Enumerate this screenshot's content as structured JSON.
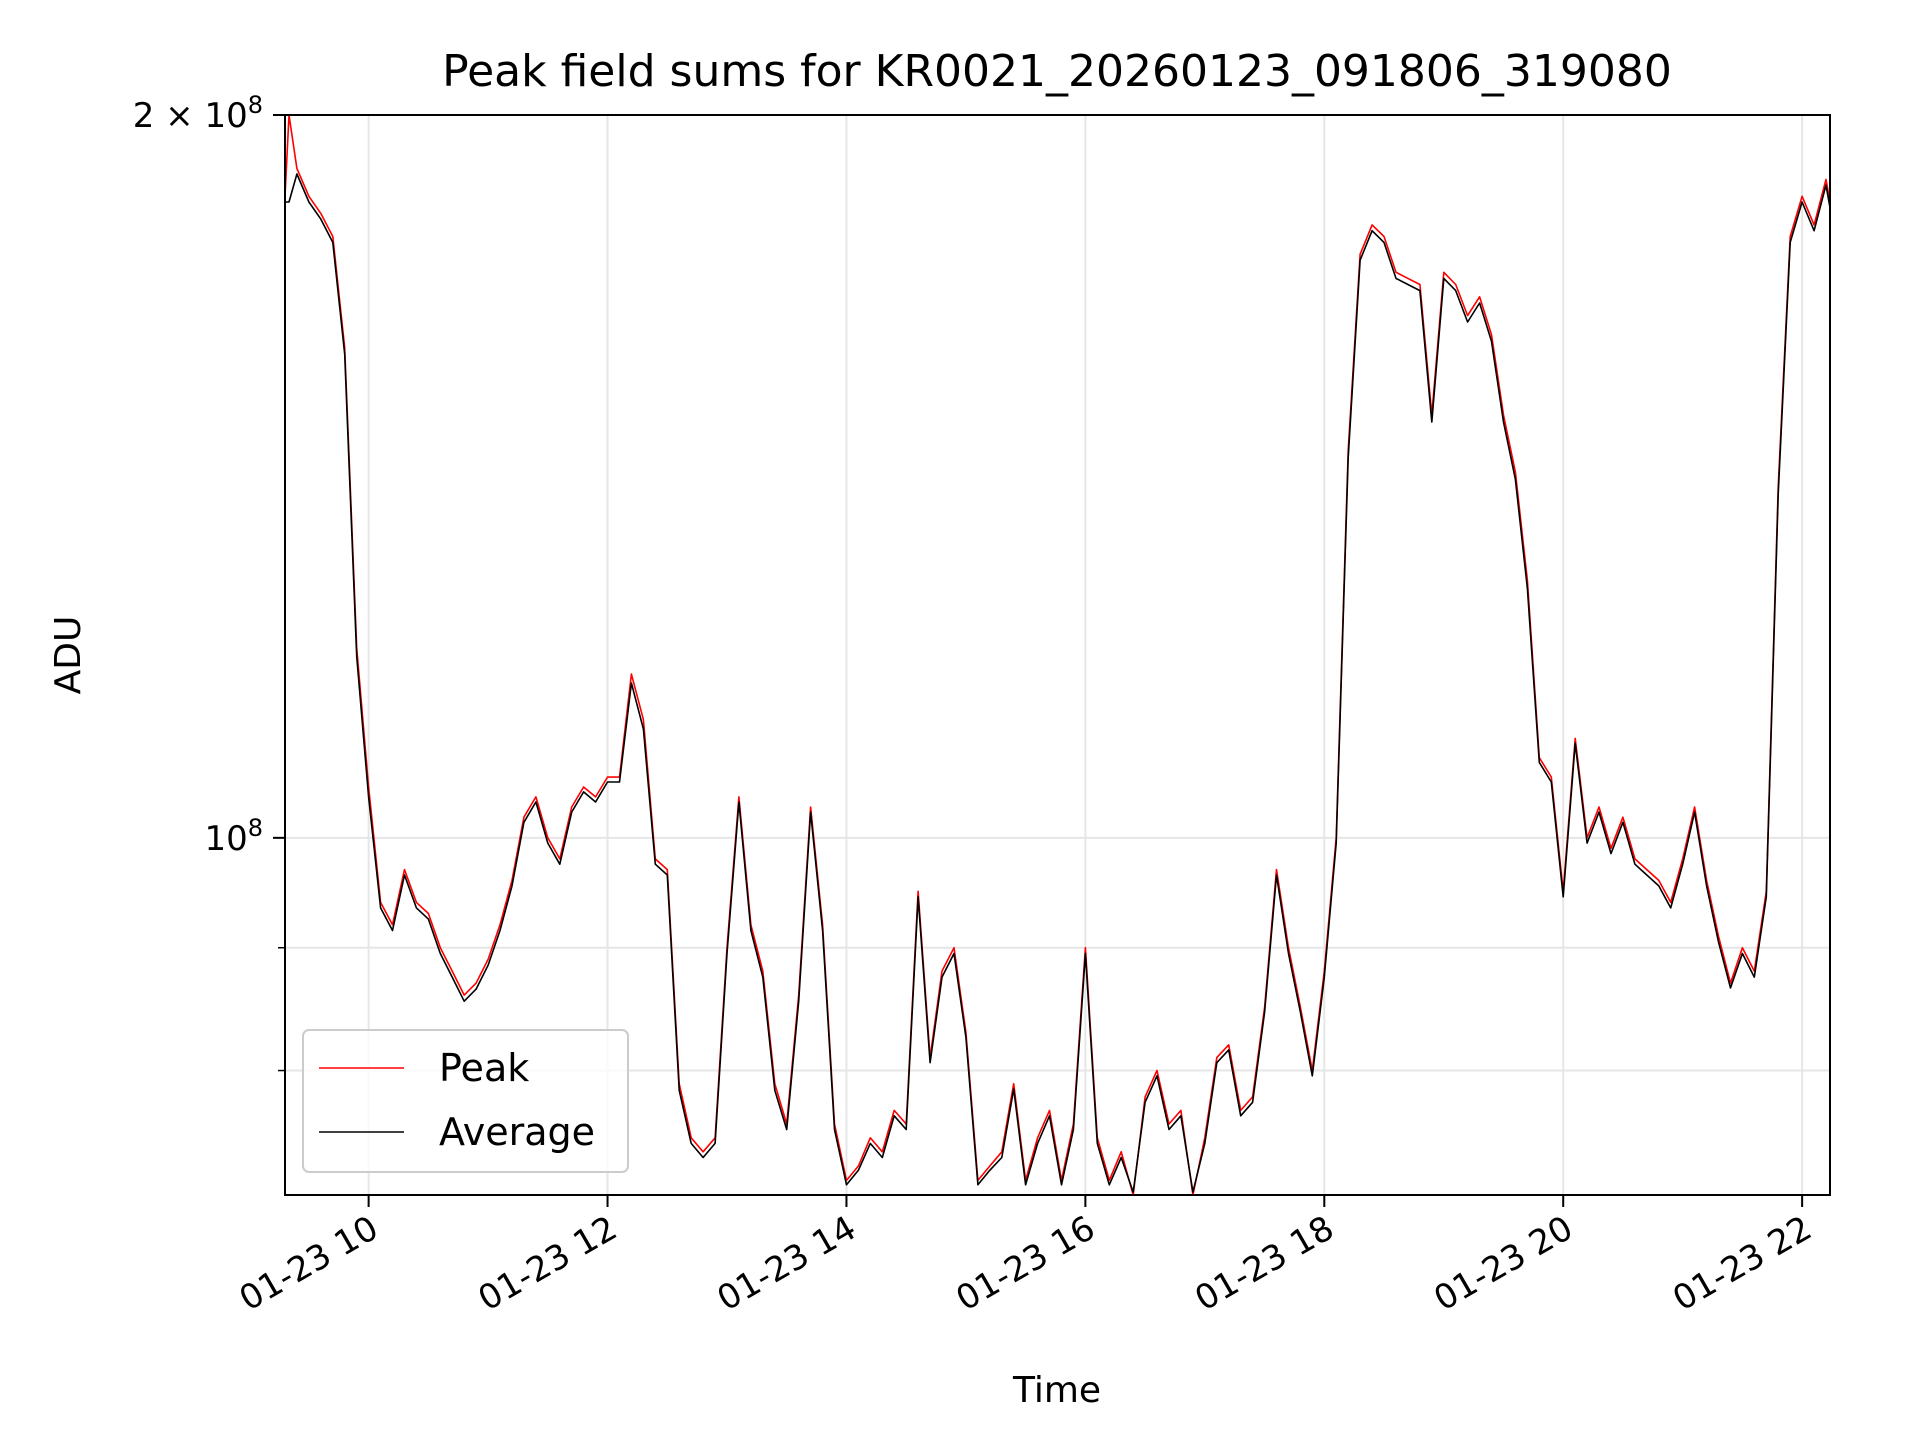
{
  "chart_data": {
    "type": "line",
    "title": "Peak field sums for KR0021_20260123_091806_319080",
    "xlabel": "Time",
    "ylabel": "ADU",
    "x_scale": "time",
    "y_scale": "log",
    "xlim": [
      "2026-01-23 09:18",
      "2026-01-23 22:14"
    ],
    "ylim": [
      71000000,
      200000000
    ],
    "grid": true,
    "legend_position": "lower-left",
    "x_ticks": [
      {
        "value": "2026-01-23 10:00",
        "label": "01-23 10"
      },
      {
        "value": "2026-01-23 12:00",
        "label": "01-23 12"
      },
      {
        "value": "2026-01-23 14:00",
        "label": "01-23 14"
      },
      {
        "value": "2026-01-23 16:00",
        "label": "01-23 16"
      },
      {
        "value": "2026-01-23 18:00",
        "label": "01-23 18"
      },
      {
        "value": "2026-01-23 20:00",
        "label": "01-23 20"
      },
      {
        "value": "2026-01-23 22:00",
        "label": "01-23 22"
      }
    ],
    "y_major_ticks": [
      {
        "value": 100000000,
        "base": "10",
        "exp": "8"
      },
      {
        "value": 200000000,
        "base": "2 × 10",
        "exp": "8"
      }
    ],
    "y_minor_ticks": [
      80000000,
      90000000
    ],
    "series": [
      {
        "name": "Peak",
        "color": "#ff0000",
        "x": [
          "2026-01-23 09:18",
          "2026-01-23 09:20",
          "2026-01-23 09:24",
          "2026-01-23 09:30",
          "2026-01-23 09:36",
          "2026-01-23 09:42",
          "2026-01-23 09:48",
          "2026-01-23 09:54",
          "2026-01-23 10:00",
          "2026-01-23 10:06",
          "2026-01-23 10:12",
          "2026-01-23 10:18",
          "2026-01-23 10:24",
          "2026-01-23 10:30",
          "2026-01-23 10:36",
          "2026-01-23 10:42",
          "2026-01-23 10:48",
          "2026-01-23 10:54",
          "2026-01-23 11:00",
          "2026-01-23 11:06",
          "2026-01-23 11:12",
          "2026-01-23 11:18",
          "2026-01-23 11:24",
          "2026-01-23 11:30",
          "2026-01-23 11:36",
          "2026-01-23 11:42",
          "2026-01-23 11:48",
          "2026-01-23 11:54",
          "2026-01-23 12:00",
          "2026-01-23 12:06",
          "2026-01-23 12:12",
          "2026-01-23 12:18",
          "2026-01-23 12:24",
          "2026-01-23 12:30",
          "2026-01-23 12:36",
          "2026-01-23 12:42",
          "2026-01-23 12:48",
          "2026-01-23 12:54",
          "2026-01-23 13:00",
          "2026-01-23 13:06",
          "2026-01-23 13:12",
          "2026-01-23 13:18",
          "2026-01-23 13:24",
          "2026-01-23 13:30",
          "2026-01-23 13:36",
          "2026-01-23 13:42",
          "2026-01-23 13:48",
          "2026-01-23 13:54",
          "2026-01-23 14:00",
          "2026-01-23 14:06",
          "2026-01-23 14:12",
          "2026-01-23 14:18",
          "2026-01-23 14:24",
          "2026-01-23 14:30",
          "2026-01-23 14:36",
          "2026-01-23 14:42",
          "2026-01-23 14:48",
          "2026-01-23 14:54",
          "2026-01-23 15:00",
          "2026-01-23 15:06",
          "2026-01-23 15:12",
          "2026-01-23 15:18",
          "2026-01-23 15:24",
          "2026-01-23 15:30",
          "2026-01-23 15:36",
          "2026-01-23 15:42",
          "2026-01-23 15:48",
          "2026-01-23 15:54",
          "2026-01-23 16:00",
          "2026-01-23 16:06",
          "2026-01-23 16:12",
          "2026-01-23 16:18",
          "2026-01-23 16:24",
          "2026-01-23 16:30",
          "2026-01-23 16:36",
          "2026-01-23 16:42",
          "2026-01-23 16:48",
          "2026-01-23 16:54",
          "2026-01-23 17:00",
          "2026-01-23 17:06",
          "2026-01-23 17:12",
          "2026-01-23 17:18",
          "2026-01-23 17:24",
          "2026-01-23 17:30",
          "2026-01-23 17:36",
          "2026-01-23 17:42",
          "2026-01-23 17:48",
          "2026-01-23 17:54",
          "2026-01-23 18:00",
          "2026-01-23 18:06",
          "2026-01-23 18:12",
          "2026-01-23 18:18",
          "2026-01-23 18:24",
          "2026-01-23 18:30",
          "2026-01-23 18:36",
          "2026-01-23 18:42",
          "2026-01-23 18:48",
          "2026-01-23 18:54",
          "2026-01-23 19:00",
          "2026-01-23 19:06",
          "2026-01-23 19:12",
          "2026-01-23 19:18",
          "2026-01-23 19:24",
          "2026-01-23 19:30",
          "2026-01-23 19:36",
          "2026-01-23 19:42",
          "2026-01-23 19:48",
          "2026-01-23 19:54",
          "2026-01-23 20:00",
          "2026-01-23 20:06",
          "2026-01-23 20:12",
          "2026-01-23 20:18",
          "2026-01-23 20:24",
          "2026-01-23 20:30",
          "2026-01-23 20:36",
          "2026-01-23 20:42",
          "2026-01-23 20:48",
          "2026-01-23 20:54",
          "2026-01-23 21:00",
          "2026-01-23 21:06",
          "2026-01-23 21:12",
          "2026-01-23 21:18",
          "2026-01-23 21:24",
          "2026-01-23 21:30",
          "2026-01-23 21:36",
          "2026-01-23 21:42",
          "2026-01-23 21:48",
          "2026-01-23 21:54",
          "2026-01-23 22:00",
          "2026-01-23 22:06",
          "2026-01-23 22:12",
          "2026-01-23 22:14"
        ],
        "values": [
          185000000,
          200000000,
          190000000,
          185000000,
          182000000,
          178000000,
          160000000,
          120000000,
          105000000,
          94000000,
          92000000,
          97000000,
          94000000,
          93000000,
          90000000,
          88000000,
          86000000,
          87000000,
          89000000,
          92000000,
          96000000,
          102000000,
          104000000,
          100000000,
          98000000,
          103000000,
          105000000,
          104000000,
          106000000,
          106000000,
          117000000,
          112000000,
          98000000,
          97000000,
          79000000,
          75000000,
          74000000,
          75000000,
          90000000,
          104000000,
          92000000,
          88000000,
          79000000,
          76000000,
          86000000,
          103000000,
          92000000,
          76000000,
          72000000,
          73000000,
          75000000,
          74000000,
          77000000,
          76000000,
          95000000,
          81000000,
          88000000,
          90000000,
          83000000,
          72000000,
          73000000,
          74000000,
          79000000,
          72000000,
          75000000,
          77000000,
          72000000,
          76000000,
          90000000,
          75000000,
          72000000,
          74000000,
          71000000,
          78000000,
          80000000,
          76000000,
          77000000,
          71000000,
          75000000,
          81000000,
          82000000,
          77000000,
          78000000,
          85000000,
          97000000,
          90000000,
          85000000,
          80000000,
          88000000,
          100000000,
          145000000,
          175000000,
          180000000,
          178000000,
          172000000,
          171000000,
          170000000,
          150000000,
          172000000,
          170000000,
          165000000,
          168000000,
          162000000,
          150000000,
          142000000,
          128000000,
          108000000,
          106000000,
          95000000,
          110000000,
          100000000,
          103000000,
          99000000,
          102000000,
          98000000,
          97000000,
          96000000,
          94000000,
          98000000,
          103000000,
          96000000,
          91000000,
          87000000,
          90000000,
          88000000,
          95000000,
          140000000,
          178000000,
          185000000,
          180000000,
          188000000,
          184000000
        ]
      },
      {
        "name": "Average",
        "color": "#000000",
        "x": [
          "2026-01-23 09:18",
          "2026-01-23 09:20",
          "2026-01-23 09:24",
          "2026-01-23 09:30",
          "2026-01-23 09:36",
          "2026-01-23 09:42",
          "2026-01-23 09:48",
          "2026-01-23 09:54",
          "2026-01-23 10:00",
          "2026-01-23 10:06",
          "2026-01-23 10:12",
          "2026-01-23 10:18",
          "2026-01-23 10:24",
          "2026-01-23 10:30",
          "2026-01-23 10:36",
          "2026-01-23 10:42",
          "2026-01-23 10:48",
          "2026-01-23 10:54",
          "2026-01-23 11:00",
          "2026-01-23 11:06",
          "2026-01-23 11:12",
          "2026-01-23 11:18",
          "2026-01-23 11:24",
          "2026-01-23 11:30",
          "2026-01-23 11:36",
          "2026-01-23 11:42",
          "2026-01-23 11:48",
          "2026-01-23 11:54",
          "2026-01-23 12:00",
          "2026-01-23 12:06",
          "2026-01-23 12:12",
          "2026-01-23 12:18",
          "2026-01-23 12:24",
          "2026-01-23 12:30",
          "2026-01-23 12:36",
          "2026-01-23 12:42",
          "2026-01-23 12:48",
          "2026-01-23 12:54",
          "2026-01-23 13:00",
          "2026-01-23 13:06",
          "2026-01-23 13:12",
          "2026-01-23 13:18",
          "2026-01-23 13:24",
          "2026-01-23 13:30",
          "2026-01-23 13:36",
          "2026-01-23 13:42",
          "2026-01-23 13:48",
          "2026-01-23 13:54",
          "2026-01-23 14:00",
          "2026-01-23 14:06",
          "2026-01-23 14:12",
          "2026-01-23 14:18",
          "2026-01-23 14:24",
          "2026-01-23 14:30",
          "2026-01-23 14:36",
          "2026-01-23 14:42",
          "2026-01-23 14:48",
          "2026-01-23 14:54",
          "2026-01-23 15:00",
          "2026-01-23 15:06",
          "2026-01-23 15:12",
          "2026-01-23 15:18",
          "2026-01-23 15:24",
          "2026-01-23 15:30",
          "2026-01-23 15:36",
          "2026-01-23 15:42",
          "2026-01-23 15:48",
          "2026-01-23 15:54",
          "2026-01-23 16:00",
          "2026-01-23 16:06",
          "2026-01-23 16:12",
          "2026-01-23 16:18",
          "2026-01-23 16:24",
          "2026-01-23 16:30",
          "2026-01-23 16:36",
          "2026-01-23 16:42",
          "2026-01-23 16:48",
          "2026-01-23 16:54",
          "2026-01-23 17:00",
          "2026-01-23 17:06",
          "2026-01-23 17:12",
          "2026-01-23 17:18",
          "2026-01-23 17:24",
          "2026-01-23 17:30",
          "2026-01-23 17:36",
          "2026-01-23 17:42",
          "2026-01-23 17:48",
          "2026-01-23 17:54",
          "2026-01-23 18:00",
          "2026-01-23 18:06",
          "2026-01-23 18:12",
          "2026-01-23 18:18",
          "2026-01-23 18:24",
          "2026-01-23 18:30",
          "2026-01-23 18:36",
          "2026-01-23 18:42",
          "2026-01-23 18:48",
          "2026-01-23 18:54",
          "2026-01-23 19:00",
          "2026-01-23 19:06",
          "2026-01-23 19:12",
          "2026-01-23 19:18",
          "2026-01-23 19:24",
          "2026-01-23 19:30",
          "2026-01-23 19:36",
          "2026-01-23 19:42",
          "2026-01-23 19:48",
          "2026-01-23 19:54",
          "2026-01-23 20:00",
          "2026-01-23 20:06",
          "2026-01-23 20:12",
          "2026-01-23 20:18",
          "2026-01-23 20:24",
          "2026-01-23 20:30",
          "2026-01-23 20:36",
          "2026-01-23 20:42",
          "2026-01-23 20:48",
          "2026-01-23 20:54",
          "2026-01-23 21:00",
          "2026-01-23 21:06",
          "2026-01-23 21:12",
          "2026-01-23 21:18",
          "2026-01-23 21:24",
          "2026-01-23 21:30",
          "2026-01-23 21:36",
          "2026-01-23 21:42",
          "2026-01-23 21:48",
          "2026-01-23 21:54",
          "2026-01-23 22:00",
          "2026-01-23 22:06",
          "2026-01-23 22:12",
          "2026-01-23 22:14"
        ],
        "values": [
          184000000,
          184000000,
          189000000,
          184000000,
          181000000,
          177000000,
          159000000,
          119000000,
          104000000,
          93500000,
          91500000,
          96500000,
          93500000,
          92500000,
          89500000,
          87500000,
          85500000,
          86500000,
          88500000,
          91500000,
          95500000,
          101500000,
          103500000,
          99500000,
          97500000,
          102500000,
          104500000,
          103500000,
          105500000,
          105500000,
          116000000,
          111000000,
          97500000,
          96500000,
          78500000,
          74600000,
          73600000,
          74600000,
          89500000,
          103500000,
          91500000,
          87500000,
          78500000,
          75600000,
          85500000,
          102500000,
          91500000,
          75600000,
          71700000,
          72700000,
          74600000,
          73600000,
          76600000,
          75600000,
          94500000,
          80600000,
          87500000,
          89500000,
          82600000,
          71700000,
          72700000,
          73600000,
          78600000,
          71700000,
          74600000,
          76600000,
          71700000,
          75600000,
          89500000,
          74600000,
          71700000,
          73600000,
          71200000,
          77600000,
          79600000,
          75600000,
          76600000,
          71200000,
          74600000,
          80600000,
          81600000,
          76600000,
          77600000,
          84600000,
          96500000,
          89500000,
          84600000,
          79600000,
          87500000,
          99500000,
          144000000,
          174000000,
          179000000,
          177000000,
          171000000,
          170000000,
          169000000,
          149000000,
          171000000,
          169000000,
          164000000,
          167000000,
          161000000,
          149000000,
          141000000,
          127000000,
          107500000,
          105500000,
          94500000,
          109500000,
          99500000,
          102500000,
          98500000,
          101500000,
          97500000,
          96500000,
          95500000,
          93500000,
          97500000,
          102500000,
          95500000,
          90500000,
          86600000,
          89500000,
          87500000,
          94500000,
          139000000,
          177000000,
          184000000,
          179000000,
          187000000,
          183000000
        ]
      }
    ]
  }
}
